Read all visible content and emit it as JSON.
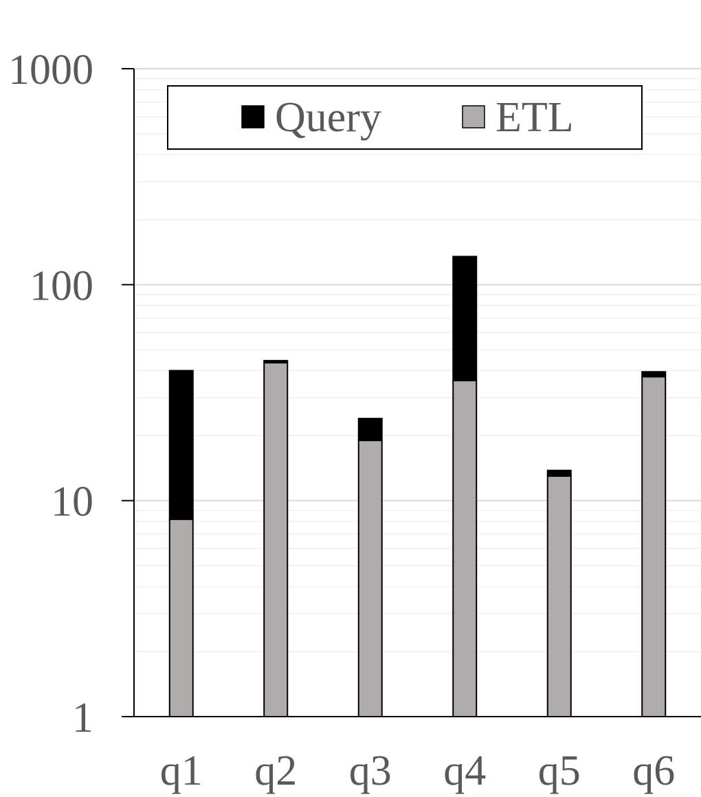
{
  "chart_data": {
    "type": "bar",
    "stacked": true,
    "y_scale": "log",
    "categories": [
      "q1",
      "q2",
      "q3",
      "q4",
      "q5",
      "q6"
    ],
    "series": [
      {
        "name": "ETL",
        "values": [
          8.2,
          43.5,
          19.0,
          36.0,
          13.0,
          37.5
        ],
        "color": "#b0acab"
      },
      {
        "name": "Query",
        "values": [
          31.8,
          1.0,
          5.0,
          99.0,
          0.8,
          2.0
        ],
        "color": "#000000"
      }
    ],
    "ylim": [
      1,
      1000
    ],
    "yticks": [
      1,
      10,
      100,
      1000
    ],
    "ytick_labels": [
      "1",
      "10",
      "100",
      "1000"
    ],
    "grid": true,
    "legend": {
      "position": "top",
      "entries": [
        "Query",
        "ETL"
      ]
    },
    "title": "",
    "xlabel": "",
    "ylabel": ""
  },
  "colors": {
    "axis": "#000000",
    "grid_major": "#d9d9d9",
    "grid_minor": "#efefef",
    "text": "#595959"
  }
}
